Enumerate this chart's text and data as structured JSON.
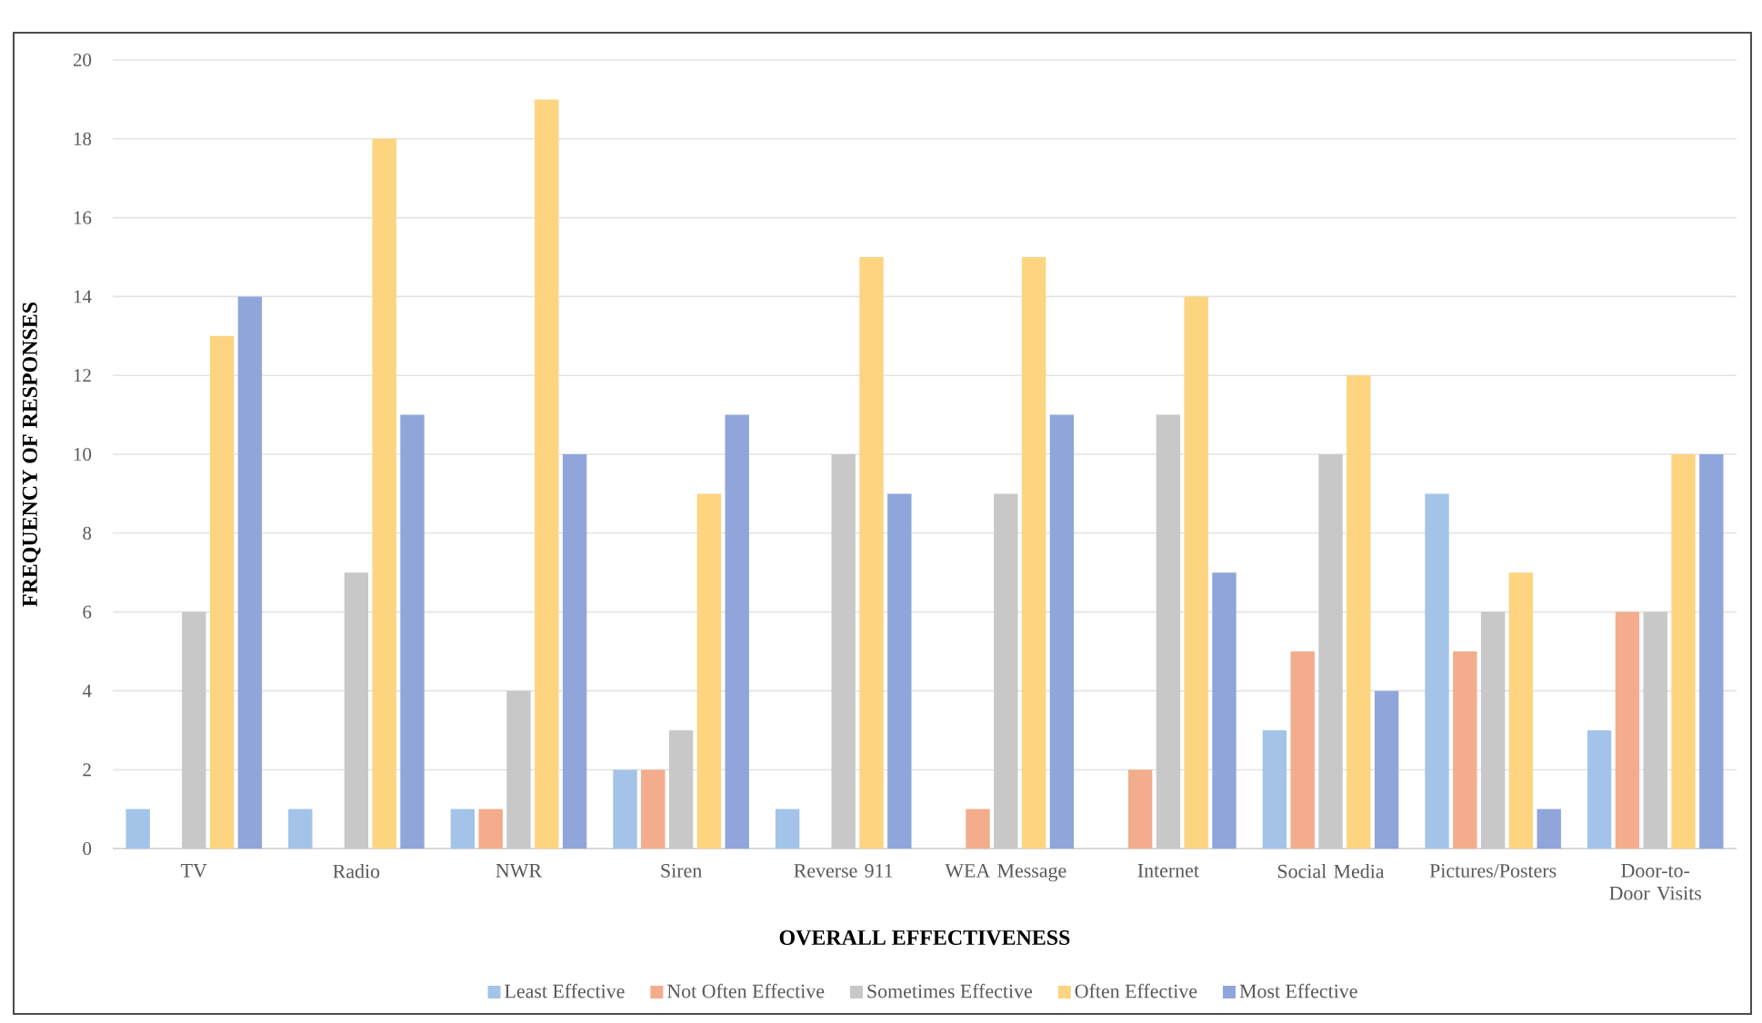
{
  "chart_data": {
    "type": "bar",
    "categories": [
      "TV",
      "Radio",
      "NWR",
      "Siren",
      "Reverse 911",
      "WEA Message",
      "Internet",
      "Social Media",
      "Pictures/Posters",
      "Door-to-Door Visits"
    ],
    "series": [
      {
        "name": "Least Effective",
        "color": "#a3c4e8",
        "values": [
          1,
          1,
          1,
          2,
          1,
          0,
          0,
          3,
          9,
          3
        ]
      },
      {
        "name": "Not Often Effective",
        "color": "#f3ad8c",
        "values": [
          0,
          0,
          1,
          2,
          0,
          1,
          2,
          5,
          5,
          6
        ]
      },
      {
        "name": "Sometimes Effective",
        "color": "#c8c8c8",
        "values": [
          6,
          7,
          4,
          3,
          10,
          9,
          11,
          10,
          6,
          6
        ]
      },
      {
        "name": "Often Effective",
        "color": "#fdd480",
        "values": [
          13,
          18,
          19,
          9,
          15,
          15,
          14,
          12,
          7,
          10
        ]
      },
      {
        "name": "Most Effective",
        "color": "#90a6da",
        "values": [
          14,
          11,
          10,
          11,
          9,
          11,
          7,
          4,
          1,
          10
        ]
      }
    ],
    "xlabel": "OVERALL EFFECTIVENESS",
    "ylabel": "FREQUENCY OF RESPONSES",
    "ylim": [
      0,
      20
    ],
    "yticks": [
      0,
      2,
      4,
      6,
      8,
      10,
      12,
      14,
      16,
      18,
      20
    ],
    "grid": "y",
    "legend": "bottom"
  }
}
